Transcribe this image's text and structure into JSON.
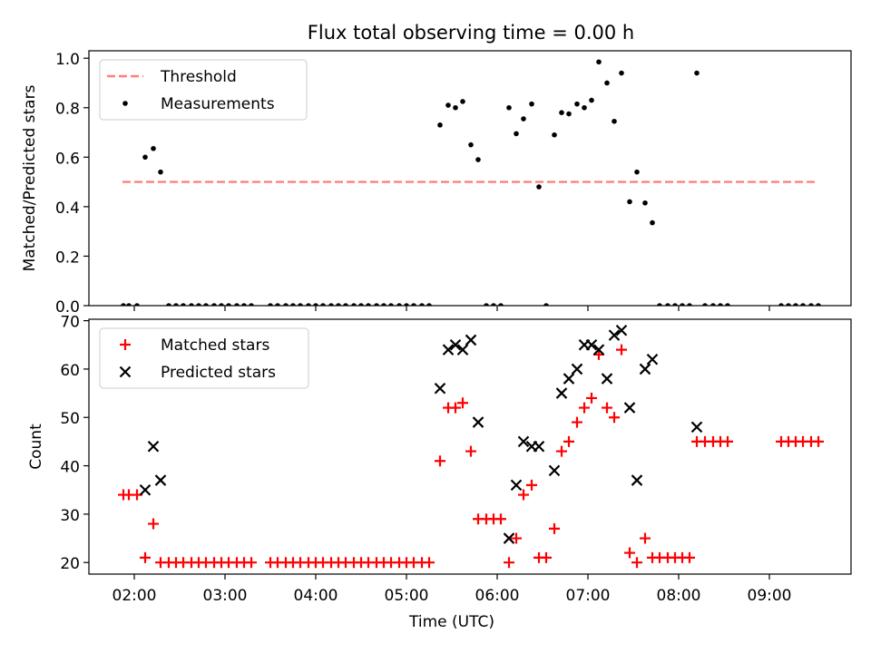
{
  "title": "Flux total observing time = 0.00 h",
  "colors": {
    "threshold": "#ff7f7f",
    "measurement": "#000000",
    "matched": "#ff0000",
    "predicted": "#000000"
  },
  "chart_data": [
    {
      "type": "scatter",
      "ylabel": "Matched/Predicted stars",
      "xlim": [
        1.5,
        9.9
      ],
      "ylim": [
        0,
        1.03
      ],
      "yticks": [
        0.0,
        0.2,
        0.4,
        0.6,
        0.8,
        1.0
      ],
      "ytick_labels": [
        "0.0",
        "0.2",
        "0.4",
        "0.6",
        "0.8",
        "1.0"
      ],
      "legend": {
        "placement": "upper-left",
        "entries": [
          "Threshold",
          "Measurements"
        ]
      },
      "threshold": {
        "name": "Threshold",
        "x": [
          1.87,
          9.5
        ],
        "y": 0.5
      },
      "series": [
        {
          "name": "Measurements",
          "points": [
            [
              1.88,
              0
            ],
            [
              1.94,
              0
            ],
            [
              2.03,
              0
            ],
            [
              2.12,
              0.6
            ],
            [
              2.21,
              0.635
            ],
            [
              2.29,
              0.54
            ],
            [
              2.38,
              0
            ],
            [
              2.46,
              0
            ],
            [
              2.54,
              0
            ],
            [
              2.63,
              0
            ],
            [
              2.71,
              0
            ],
            [
              2.79,
              0
            ],
            [
              2.88,
              0
            ],
            [
              2.96,
              0
            ],
            [
              3.04,
              0
            ],
            [
              3.13,
              0
            ],
            [
              3.21,
              0
            ],
            [
              3.29,
              0
            ],
            [
              3.5,
              0
            ],
            [
              3.58,
              0
            ],
            [
              3.67,
              0
            ],
            [
              3.75,
              0
            ],
            [
              3.83,
              0
            ],
            [
              3.92,
              0
            ],
            [
              4.0,
              0
            ],
            [
              4.08,
              0
            ],
            [
              4.17,
              0
            ],
            [
              4.25,
              0
            ],
            [
              4.33,
              0
            ],
            [
              4.42,
              0
            ],
            [
              4.5,
              0
            ],
            [
              4.58,
              0
            ],
            [
              4.67,
              0
            ],
            [
              4.75,
              0
            ],
            [
              4.83,
              0
            ],
            [
              4.92,
              0
            ],
            [
              5.0,
              0
            ],
            [
              5.08,
              0
            ],
            [
              5.17,
              0
            ],
            [
              5.25,
              0
            ],
            [
              5.37,
              0.73
            ],
            [
              5.46,
              0.81
            ],
            [
              5.54,
              0.8
            ],
            [
              5.62,
              0.825
            ],
            [
              5.71,
              0.65
            ],
            [
              5.79,
              0.59
            ],
            [
              5.88,
              0
            ],
            [
              5.96,
              0
            ],
            [
              6.04,
              0
            ],
            [
              6.13,
              0.8
            ],
            [
              6.21,
              0.695
            ],
            [
              6.29,
              0.755
            ],
            [
              6.38,
              0.815
            ],
            [
              6.46,
              0.48
            ],
            [
              6.54,
              0
            ],
            [
              6.63,
              0.69
            ],
            [
              6.71,
              0.78
            ],
            [
              6.79,
              0.775
            ],
            [
              6.88,
              0.815
            ],
            [
              6.96,
              0.8
            ],
            [
              7.04,
              0.83
            ],
            [
              7.12,
              0.985
            ],
            [
              7.21,
              0.9
            ],
            [
              7.29,
              0.745
            ],
            [
              7.37,
              0.94
            ],
            [
              7.46,
              0.42
            ],
            [
              7.54,
              0.54
            ],
            [
              7.63,
              0.415
            ],
            [
              7.71,
              0.335
            ],
            [
              7.79,
              0
            ],
            [
              7.88,
              0
            ],
            [
              7.96,
              0
            ],
            [
              8.04,
              0
            ],
            [
              8.12,
              0
            ],
            [
              8.2,
              0.94
            ],
            [
              8.29,
              0
            ],
            [
              8.38,
              0
            ],
            [
              8.46,
              0
            ],
            [
              8.54,
              0
            ],
            [
              9.13,
              0
            ],
            [
              9.21,
              0
            ],
            [
              9.29,
              0
            ],
            [
              9.37,
              0
            ],
            [
              9.46,
              0
            ],
            [
              9.54,
              0
            ]
          ]
        }
      ]
    },
    {
      "type": "scatter",
      "xlabel": "Time (UTC)",
      "ylabel": "Count",
      "xlim": [
        1.5,
        9.9
      ],
      "ylim": [
        17.6,
        70.3
      ],
      "xticks": [
        2,
        3,
        4,
        5,
        6,
        7,
        8,
        9
      ],
      "xtick_labels": [
        "02:00",
        "03:00",
        "04:00",
        "05:00",
        "06:00",
        "07:00",
        "08:00",
        "09:00"
      ],
      "yticks": [
        20,
        30,
        40,
        50,
        60,
        70
      ],
      "ytick_labels": [
        "20",
        "30",
        "40",
        "50",
        "60",
        "70"
      ],
      "legend": {
        "placement": "upper-left",
        "entries": [
          "Matched stars",
          "Predicted stars"
        ]
      },
      "series": [
        {
          "name": "Matched stars",
          "marker": "plus",
          "points": [
            [
              1.88,
              34
            ],
            [
              1.94,
              34
            ],
            [
              2.03,
              34
            ],
            [
              2.12,
              21
            ],
            [
              2.21,
              28
            ],
            [
              2.29,
              20
            ],
            [
              2.38,
              20
            ],
            [
              2.46,
              20
            ],
            [
              2.54,
              20
            ],
            [
              2.63,
              20
            ],
            [
              2.71,
              20
            ],
            [
              2.79,
              20
            ],
            [
              2.88,
              20
            ],
            [
              2.96,
              20
            ],
            [
              3.04,
              20
            ],
            [
              3.13,
              20
            ],
            [
              3.21,
              20
            ],
            [
              3.29,
              20
            ],
            [
              3.5,
              20
            ],
            [
              3.58,
              20
            ],
            [
              3.67,
              20
            ],
            [
              3.75,
              20
            ],
            [
              3.83,
              20
            ],
            [
              3.92,
              20
            ],
            [
              4.0,
              20
            ],
            [
              4.08,
              20
            ],
            [
              4.17,
              20
            ],
            [
              4.25,
              20
            ],
            [
              4.33,
              20
            ],
            [
              4.42,
              20
            ],
            [
              4.5,
              20
            ],
            [
              4.58,
              20
            ],
            [
              4.67,
              20
            ],
            [
              4.75,
              20
            ],
            [
              4.83,
              20
            ],
            [
              4.92,
              20
            ],
            [
              5.0,
              20
            ],
            [
              5.08,
              20
            ],
            [
              5.17,
              20
            ],
            [
              5.25,
              20
            ],
            [
              5.37,
              41
            ],
            [
              5.46,
              52
            ],
            [
              5.54,
              52
            ],
            [
              5.62,
              53
            ],
            [
              5.71,
              43
            ],
            [
              5.79,
              29
            ],
            [
              5.88,
              29
            ],
            [
              5.96,
              29
            ],
            [
              6.04,
              29
            ],
            [
              6.13,
              20
            ],
            [
              6.21,
              25
            ],
            [
              6.29,
              34
            ],
            [
              6.38,
              36
            ],
            [
              6.46,
              21
            ],
            [
              6.54,
              21
            ],
            [
              6.63,
              27
            ],
            [
              6.71,
              43
            ],
            [
              6.79,
              45
            ],
            [
              6.88,
              49
            ],
            [
              6.96,
              52
            ],
            [
              7.04,
              54
            ],
            [
              7.12,
              63
            ],
            [
              7.21,
              52
            ],
            [
              7.29,
              50
            ],
            [
              7.37,
              64
            ],
            [
              7.46,
              22
            ],
            [
              7.54,
              20
            ],
            [
              7.63,
              25
            ],
            [
              7.71,
              21
            ],
            [
              7.79,
              21
            ],
            [
              7.88,
              21
            ],
            [
              7.96,
              21
            ],
            [
              8.04,
              21
            ],
            [
              8.12,
              21
            ],
            [
              8.2,
              45
            ],
            [
              8.29,
              45
            ],
            [
              8.38,
              45
            ],
            [
              8.46,
              45
            ],
            [
              8.54,
              45
            ],
            [
              9.13,
              45
            ],
            [
              9.21,
              45
            ],
            [
              9.29,
              45
            ],
            [
              9.37,
              45
            ],
            [
              9.46,
              45
            ],
            [
              9.54,
              45
            ]
          ]
        },
        {
          "name": "Predicted stars",
          "marker": "x",
          "points": [
            [
              2.12,
              35
            ],
            [
              2.21,
              44
            ],
            [
              2.29,
              37
            ],
            [
              5.37,
              56
            ],
            [
              5.46,
              64
            ],
            [
              5.54,
              65
            ],
            [
              5.62,
              64
            ],
            [
              5.71,
              66
            ],
            [
              5.79,
              49
            ],
            [
              6.13,
              25
            ],
            [
              6.21,
              36
            ],
            [
              6.29,
              45
            ],
            [
              6.38,
              44
            ],
            [
              6.46,
              44
            ],
            [
              6.63,
              39
            ],
            [
              6.71,
              55
            ],
            [
              6.79,
              58
            ],
            [
              6.88,
              60
            ],
            [
              6.96,
              65
            ],
            [
              7.04,
              65
            ],
            [
              7.12,
              64
            ],
            [
              7.21,
              58
            ],
            [
              7.29,
              67
            ],
            [
              7.37,
              68
            ],
            [
              7.46,
              52
            ],
            [
              7.54,
              37
            ],
            [
              7.63,
              60
            ],
            [
              7.71,
              62
            ],
            [
              8.2,
              48
            ]
          ]
        }
      ]
    }
  ]
}
